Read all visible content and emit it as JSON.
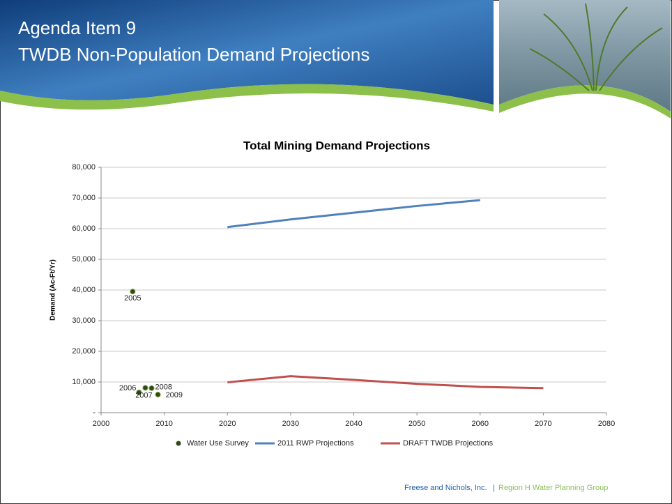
{
  "header": {
    "title": "Agenda Item 9",
    "subtitle": "TWDB Non-Population Demand Projections"
  },
  "footer": {
    "company": "Freese and Nichols, Inc.",
    "separator": "|",
    "group": "Region H Water Planning Group"
  },
  "chart_data": {
    "type": "combo",
    "title": "Total Mining Demand Projections",
    "y_label": "Demand (Ac-Ft/Yr)",
    "xlim": [
      2000,
      2080
    ],
    "xticks": [
      2000,
      2010,
      2020,
      2030,
      2040,
      2050,
      2060,
      2070,
      2080
    ],
    "ylim": [
      0,
      80000
    ],
    "yticks": [
      {
        "value": 0,
        "label": "-"
      },
      {
        "value": 10000,
        "label": "10,000"
      },
      {
        "value": 20000,
        "label": "20,000"
      },
      {
        "value": 30000,
        "label": "30,000"
      },
      {
        "value": 40000,
        "label": "40,000"
      },
      {
        "value": 50000,
        "label": "50,000"
      },
      {
        "value": 60000,
        "label": "60,000"
      },
      {
        "value": 70000,
        "label": "70,000"
      },
      {
        "value": 80000,
        "label": "80,000"
      }
    ],
    "grid": true,
    "legend": "bottom",
    "series": [
      {
        "name": "Water Use Survey",
        "type": "scatter",
        "color": "#2e4a1a",
        "x": [
          2005,
          2006,
          2007,
          2008,
          2009
        ],
        "values": [
          39500,
          6600,
          8100,
          8000,
          5900
        ]
      },
      {
        "name": "2011 RWP Projections",
        "type": "line",
        "color": "#4f81bd",
        "x": [
          2020,
          2030,
          2040,
          2050,
          2060
        ],
        "values": [
          60500,
          63000,
          65200,
          67400,
          69300
        ]
      },
      {
        "name": "DRAFT TWDB Projections",
        "type": "line",
        "color": "#c0504d",
        "x": [
          2020,
          2030,
          2040,
          2050,
          2060,
          2070
        ],
        "values": [
          9900,
          11900,
          10700,
          9400,
          8400,
          8000
        ]
      }
    ]
  }
}
